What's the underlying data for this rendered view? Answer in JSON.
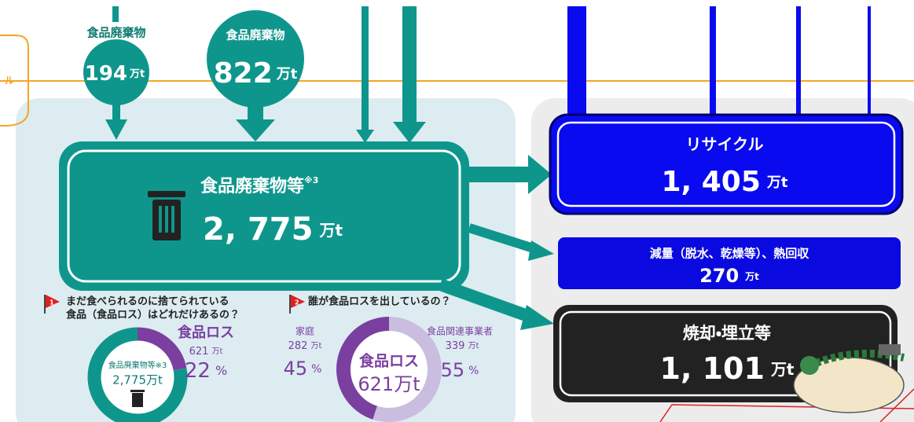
{
  "edge_label": "ル",
  "inputs": [
    {
      "label": "食品廃棄物",
      "value": "194",
      "unit": "万t"
    },
    {
      "label": "食品廃棄物",
      "value": "822",
      "unit": "万t"
    }
  ],
  "main": {
    "title": "食品廃棄物等",
    "note": "※3",
    "value": "2, 775",
    "unit": "万t"
  },
  "outputs": [
    {
      "label": "リサイクル",
      "value": "1, 405",
      "unit": "万t"
    },
    {
      "label": "減量（脱水、乾燥等）、熱回収",
      "value": "270",
      "unit": "万t"
    },
    {
      "label": "焼却・埋立等",
      "value": "1, 101",
      "unit": "万t"
    }
  ],
  "questions": [
    {
      "number": "1",
      "lines": [
        "まだ食べられるのに捨てられている",
        "食品（食品ロス）はどれだけあるの？"
      ]
    },
    {
      "number": "2",
      "lines": [
        "誰が食品ロスを出しているの？"
      ]
    }
  ],
  "loss_share": {
    "center_label": "食品廃棄物等※3",
    "center_value": "2,775万t",
    "label": "食品ロス",
    "amount": "621",
    "unit": "万t",
    "percent": 22,
    "percent_unit": "%"
  },
  "loss_sources": {
    "center_label": "食品ロス",
    "center_value": "621万t",
    "segments": [
      {
        "name": "家庭",
        "amount": "282",
        "unit": "万t",
        "percent": 45,
        "percent_unit": "%"
      },
      {
        "name": "食品関連事業者",
        "amount": "339",
        "unit": "万t",
        "percent": 55,
        "percent_unit": "%"
      }
    ]
  }
}
